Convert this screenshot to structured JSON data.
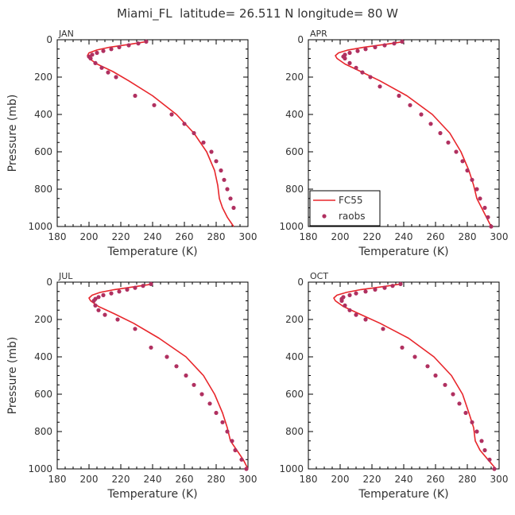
{
  "figure_title": "Miami_FL  latitude= 26.511 N longitude= 80 W",
  "colors": {
    "model": "#e8262b",
    "obs": "#b03060",
    "axis": "#000000",
    "text": "#333333"
  },
  "legend": {
    "model_label": "FC55",
    "obs_label": "raobs",
    "panel": "APR"
  },
  "chart_data": [
    {
      "type": "line",
      "panel_label": "JAN",
      "xlabel": "Temperature (K)",
      "ylabel": "Pressure (mb)",
      "xlim": [
        180,
        300
      ],
      "ylim": [
        1000,
        0
      ],
      "xticks": [
        "180",
        "200",
        "220",
        "240",
        "260",
        "280",
        "300"
      ],
      "yticks": [
        "0",
        "200",
        "400",
        "600",
        "800",
        "1000"
      ],
      "series": [
        {
          "name": "FC55",
          "kind": "line",
          "x": [
            236,
            225,
            213,
            205,
            200,
            199,
            200,
            205,
            215,
            225,
            240,
            255,
            266,
            274,
            279,
            281,
            282,
            284,
            287,
            291
          ],
          "y": [
            10,
            25,
            40,
            55,
            70,
            85,
            100,
            130,
            170,
            220,
            300,
            400,
            500,
            600,
            700,
            780,
            850,
            900,
            950,
            1000
          ]
        },
        {
          "name": "raobs",
          "kind": "scatter",
          "x": [
            236,
            231,
            225,
            219,
            214,
            209,
            205,
            202,
            200,
            201,
            204,
            208,
            212,
            217,
            229,
            241,
            252,
            260,
            266,
            272,
            277,
            280,
            283,
            285,
            287,
            289,
            291
          ],
          "y": [
            10,
            20,
            30,
            40,
            50,
            60,
            70,
            80,
            90,
            100,
            125,
            150,
            175,
            200,
            300,
            350,
            400,
            450,
            500,
            550,
            600,
            650,
            700,
            750,
            800,
            850,
            900
          ]
        }
      ]
    },
    {
      "type": "line",
      "panel_label": "APR",
      "xlabel": "Temperature (K)",
      "ylabel": "",
      "xlim": [
        180,
        300
      ],
      "ylim": [
        1000,
        0
      ],
      "xticks": [
        "180",
        "200",
        "220",
        "240",
        "260",
        "280",
        "300"
      ],
      "yticks": [
        "0",
        "200",
        "400",
        "600",
        "800",
        "1000"
      ],
      "series": [
        {
          "name": "FC55",
          "kind": "line",
          "x": [
            240,
            228,
            215,
            205,
            199,
            197,
            198,
            203,
            213,
            225,
            242,
            258,
            269,
            276,
            281,
            284,
            286,
            289,
            292,
            295
          ],
          "y": [
            10,
            25,
            40,
            55,
            70,
            85,
            100,
            130,
            170,
            220,
            300,
            400,
            500,
            600,
            700,
            780,
            850,
            900,
            950,
            1000
          ]
        },
        {
          "name": "raobs",
          "kind": "scatter",
          "x": [
            239,
            234,
            228,
            222,
            216,
            211,
            206,
            203,
            202,
            203,
            206,
            210,
            214,
            219,
            225,
            237,
            244,
            251,
            257,
            263,
            268,
            273,
            277,
            280,
            283,
            286,
            288,
            291,
            293,
            295
          ],
          "y": [
            10,
            20,
            30,
            40,
            50,
            60,
            70,
            80,
            90,
            100,
            125,
            150,
            175,
            200,
            250,
            300,
            350,
            400,
            450,
            500,
            550,
            600,
            650,
            700,
            750,
            800,
            850,
            900,
            950,
            1000
          ]
        }
      ]
    },
    {
      "type": "line",
      "panel_label": "JUL",
      "xlabel": "Temperature (K)",
      "ylabel": "Pressure (mb)",
      "xlim": [
        180,
        300
      ],
      "ylim": [
        1000,
        0
      ],
      "xticks": [
        "180",
        "200",
        "220",
        "240",
        "260",
        "280",
        "300"
      ],
      "yticks": [
        "0",
        "200",
        "400",
        "600",
        "800",
        "1000"
      ],
      "series": [
        {
          "name": "FC55",
          "kind": "line",
          "x": [
            240,
            228,
            216,
            207,
            202,
            200,
            201,
            206,
            216,
            228,
            244,
            261,
            272,
            279,
            284,
            287,
            289,
            293,
            297,
            300
          ],
          "y": [
            10,
            25,
            40,
            55,
            70,
            85,
            100,
            130,
            170,
            220,
            300,
            400,
            500,
            600,
            700,
            780,
            850,
            900,
            950,
            1000
          ]
        },
        {
          "name": "raobs",
          "kind": "scatter",
          "x": [
            239,
            234,
            229,
            224,
            219,
            214,
            209,
            206,
            204,
            203,
            204,
            206,
            210,
            218,
            229,
            239,
            249,
            255,
            261,
            266,
            271,
            276,
            280,
            284,
            287,
            290,
            292,
            296,
            299
          ],
          "y": [
            10,
            20,
            30,
            40,
            50,
            60,
            70,
            80,
            90,
            100,
            125,
            150,
            175,
            200,
            250,
            350,
            400,
            450,
            500,
            550,
            600,
            650,
            700,
            750,
            800,
            850,
            900,
            950,
            1000
          ]
        }
      ]
    },
    {
      "type": "line",
      "panel_label": "OCT",
      "xlabel": "Temperature (K)",
      "ylabel": "",
      "xlim": [
        180,
        300
      ],
      "ylim": [
        1000,
        0
      ],
      "xticks": [
        "180",
        "200",
        "220",
        "240",
        "260",
        "280",
        "300"
      ],
      "yticks": [
        "0",
        "200",
        "400",
        "600",
        "800",
        "1000"
      ],
      "series": [
        {
          "name": "FC55",
          "kind": "line",
          "x": [
            238,
            226,
            213,
            204,
            198,
            196,
            197,
            202,
            212,
            225,
            243,
            259,
            270,
            277,
            281,
            284,
            285,
            288,
            293,
            298
          ],
          "y": [
            10,
            25,
            40,
            55,
            70,
            85,
            100,
            130,
            170,
            220,
            300,
            400,
            500,
            600,
            700,
            780,
            850,
            900,
            950,
            1000
          ]
        },
        {
          "name": "raobs",
          "kind": "scatter",
          "x": [
            238,
            233,
            228,
            222,
            216,
            210,
            206,
            202,
            201,
            201,
            203,
            206,
            210,
            216,
            227,
            239,
            247,
            255,
            260,
            266,
            271,
            275,
            279,
            283,
            286,
            289,
            291,
            294,
            297
          ],
          "y": [
            10,
            20,
            30,
            40,
            50,
            60,
            70,
            80,
            90,
            100,
            125,
            150,
            175,
            200,
            250,
            350,
            400,
            450,
            500,
            550,
            600,
            650,
            700,
            750,
            800,
            850,
            900,
            950,
            1000
          ]
        }
      ]
    }
  ]
}
